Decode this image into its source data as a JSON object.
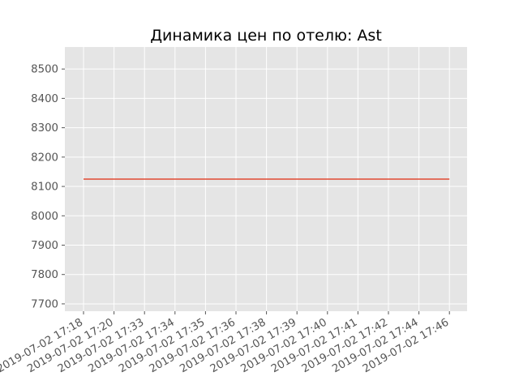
{
  "chart_data": {
    "type": "line",
    "title": "Динамика цен по отелю: Ast",
    "xlabel": "",
    "ylabel": "",
    "categories": [
      "2019-07-02 17:18",
      "2019-07-02 17:20",
      "2019-07-02 17:33",
      "2019-07-02 17:34",
      "2019-07-02 17:35",
      "2019-07-02 17:36",
      "2019-07-02 17:38",
      "2019-07-02 17:39",
      "2019-07-02 17:40",
      "2019-07-02 17:41",
      "2019-07-02 17:42",
      "2019-07-02 17:44",
      "2019-07-02 17:46"
    ],
    "series": [
      {
        "values": [
          8125,
          8125,
          8125,
          8125,
          8125,
          8125,
          8125,
          8125,
          8125,
          8125,
          8125,
          8125,
          8125
        ]
      }
    ],
    "yticks": [
      7700,
      7800,
      7900,
      8000,
      8100,
      8200,
      8300,
      8400,
      8500
    ],
    "ylim": [
      7675,
      8575
    ],
    "grid": true,
    "colors": {
      "background": "#e5e5e5",
      "grid": "#ffffff",
      "line": "#e24a33",
      "tick_text": "#555555"
    }
  }
}
